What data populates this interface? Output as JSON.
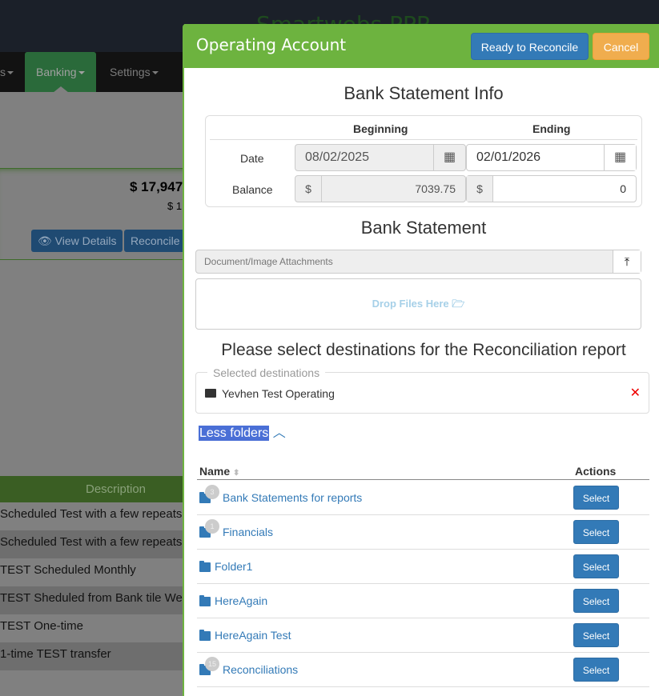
{
  "background": {
    "brand": "Smartwebs PPR",
    "menu": [
      {
        "label": "s"
      },
      {
        "label": "Banking"
      },
      {
        "label": "Settings"
      }
    ],
    "balance": "$ 17,947",
    "sub_balance": "$ 1",
    "view_details": "View Details",
    "reconcile": "Reconcile",
    "description_header": "Description",
    "descriptions": [
      "Scheduled Test with a few repeats",
      "Scheduled Test with a few repeats",
      "TEST Scheduled Monthly",
      "TEST Sheduled from Bank tile Wee",
      "TEST One-time",
      "1-time TEST transfer"
    ]
  },
  "modal": {
    "title": "Operating Account",
    "ready_button": "Ready to Reconcile",
    "cancel_button": "Cancel",
    "info_title": "Bank Statement Info",
    "col_beginning": "Beginning",
    "col_ending": "Ending",
    "date_label": "Date",
    "balance_label": "Balance",
    "begin_date": "08/02/2025",
    "end_date": "02/01/2026",
    "currency": "$",
    "begin_balance": "7039.75",
    "end_balance": "0",
    "statement_title": "Bank Statement",
    "attachments_placeholder": "Document/Image Attachments",
    "drop_text": "Drop Files Here",
    "dest_title": "Please select destinations for the Reconciliation report",
    "selected_legend": "Selected destinations",
    "selected": "Yevhen Test Operating",
    "less_folders": "Less folders",
    "col_name": "Name",
    "col_actions": "Actions",
    "select_label": "Select",
    "folders": [
      {
        "name": "Bank Statements for reports",
        "count": "3"
      },
      {
        "name": "Financials",
        "count": "1"
      },
      {
        "name": "Folder1",
        "count": ""
      },
      {
        "name": "HereAgain",
        "count": ""
      },
      {
        "name": "HereAgain Test",
        "count": ""
      },
      {
        "name": "Reconciliations",
        "count": "15"
      }
    ]
  },
  "colors": {
    "header_green": "#6db33f",
    "primary": "#337ab7",
    "warning": "#f0ad4e",
    "highlight": "#4a6fd6"
  }
}
